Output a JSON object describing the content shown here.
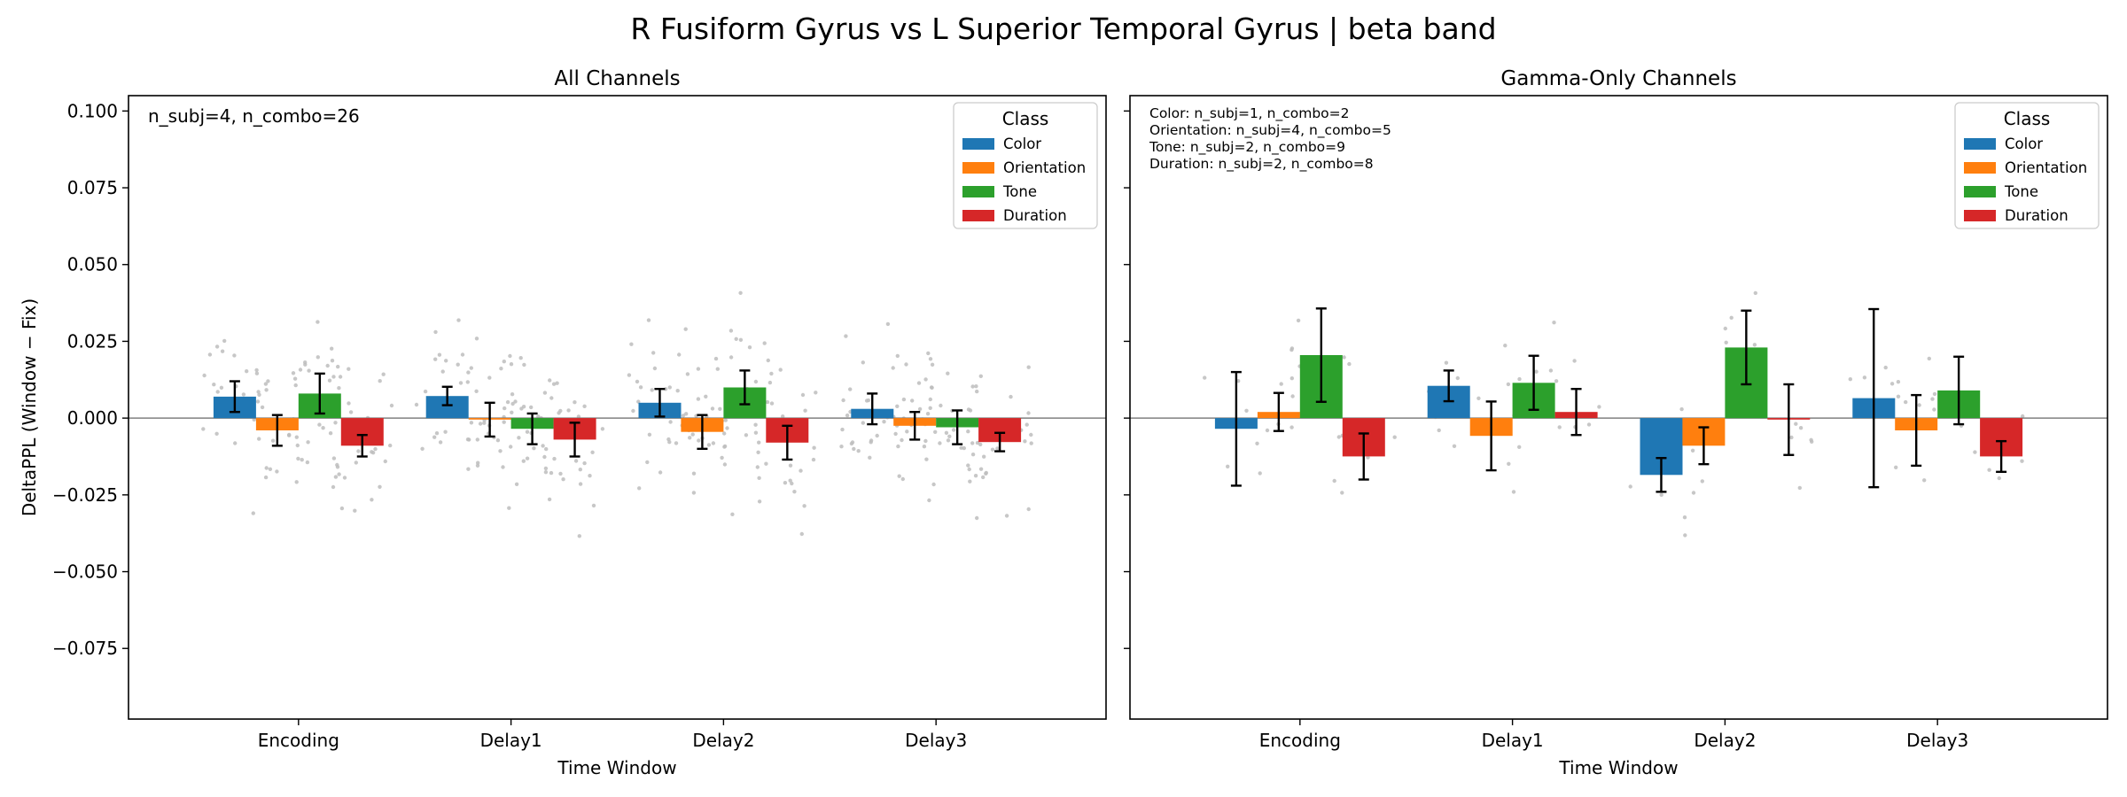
{
  "title": "R Fusiform Gyrus vs L Superior Temporal Gyrus  |  beta band",
  "colors": {
    "Color": "#1f77b4",
    "Orientation": "#ff7f0e",
    "Tone": "#2ca02c",
    "Duration": "#d62728",
    "points": "#bdbdbd"
  },
  "chart_data": [
    {
      "type": "bar",
      "title": "All Channels",
      "xlabel": "Time Window",
      "ylabel": "DeltaPPL (Window − Fix)",
      "ylim": [
        -0.098,
        0.105
      ],
      "yticks": [
        "0.100",
        "0.075",
        "0.050",
        "0.025",
        "0.000",
        "−0.025",
        "−0.050",
        "−0.075"
      ],
      "categories": [
        "Encoding",
        "Delay1",
        "Delay2",
        "Delay3"
      ],
      "annotation": [
        "n_subj=4, n_combo=26"
      ],
      "legend": {
        "title": "Class",
        "position": "top-right"
      },
      "series": [
        {
          "name": "Color",
          "values": [
            0.007,
            0.0072,
            0.005,
            0.003
          ],
          "err": [
            0.005,
            0.003,
            0.0045,
            0.005
          ]
        },
        {
          "name": "Orientation",
          "values": [
            -0.004,
            -0.0005,
            -0.0045,
            -0.0025
          ],
          "err": [
            0.005,
            0.0055,
            0.0055,
            0.0045
          ]
        },
        {
          "name": "Tone",
          "values": [
            0.008,
            -0.0035,
            0.01,
            -0.003
          ],
          "err": [
            0.0065,
            0.005,
            0.0055,
            0.0055
          ]
        },
        {
          "name": "Duration",
          "values": [
            -0.009,
            -0.007,
            -0.008,
            -0.0078
          ],
          "err": [
            0.0035,
            0.0055,
            0.0055,
            0.003
          ]
        }
      ]
    },
    {
      "type": "bar",
      "title": "Gamma-Only Channels",
      "xlabel": "Time Window",
      "ylabel": "",
      "ylim": [
        -0.098,
        0.105
      ],
      "categories": [
        "Encoding",
        "Delay1",
        "Delay2",
        "Delay3"
      ],
      "annotation": [
        "Color: n_subj=1, n_combo=2",
        "Orientation: n_subj=4, n_combo=5",
        "Tone: n_subj=2, n_combo=9",
        "Duration: n_subj=2, n_combo=8"
      ],
      "legend": {
        "title": "Class",
        "position": "top-right"
      },
      "series": [
        {
          "name": "Color",
          "values": [
            -0.0035,
            0.0105,
            -0.0185,
            0.0065
          ],
          "err": [
            0.0185,
            0.005,
            0.0055,
            0.029
          ]
        },
        {
          "name": "Orientation",
          "values": [
            0.002,
            -0.0058,
            -0.009,
            -0.004
          ],
          "err": [
            0.0062,
            0.0112,
            0.006,
            0.0115
          ]
        },
        {
          "name": "Tone",
          "values": [
            0.0205,
            0.0115,
            0.023,
            0.009
          ],
          "err": [
            0.0152,
            0.0088,
            0.012,
            0.011
          ]
        },
        {
          "name": "Duration",
          "values": [
            -0.0125,
            0.002,
            -0.0005,
            -0.0125
          ],
          "err": [
            0.0075,
            0.0075,
            0.0115,
            0.005
          ]
        }
      ]
    }
  ]
}
